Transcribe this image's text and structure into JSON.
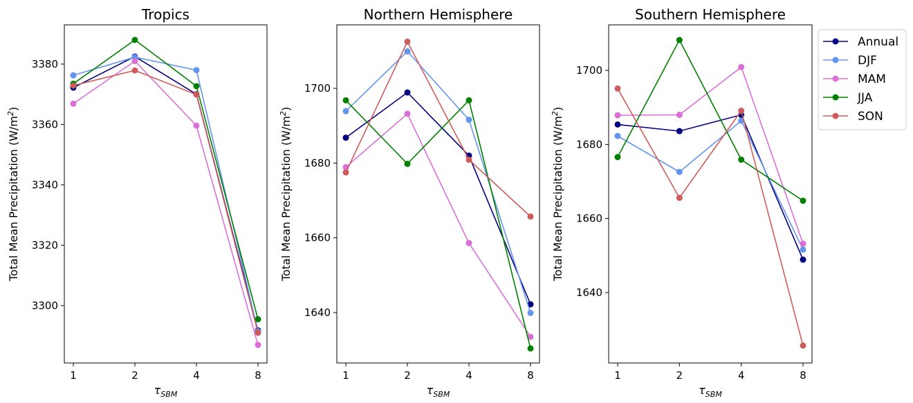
{
  "chart_data": [
    {
      "type": "line",
      "title": "Tropics",
      "xlabel": "τ",
      "xlabel_sub": "SBM",
      "ylabel": "Total Mean Precipitation (W/m",
      "ylabel_sup": "2",
      "ylabel_end": ")",
      "categories": [
        "1",
        "2",
        "4",
        "8"
      ],
      "ylim": [
        3281,
        3393
      ],
      "yticks": [
        3300,
        3320,
        3340,
        3360,
        3380
      ],
      "grid": false,
      "series": [
        {
          "name": "Annual",
          "color": "#000080",
          "values": [
            3372.2,
            3382.5,
            3370.0,
            3291.8
          ]
        },
        {
          "name": "DJF",
          "color": "#6495ED",
          "values": [
            3376.3,
            3382.3,
            3378.0,
            3291.5
          ]
        },
        {
          "name": "MAM",
          "color": "#DA70D6",
          "values": [
            3366.9,
            3381.0,
            3359.6,
            3287.0
          ]
        },
        {
          "name": "JJA",
          "color": "#008000",
          "values": [
            3373.5,
            3388.0,
            3372.7,
            3295.5
          ]
        },
        {
          "name": "SON",
          "color": "#CD5C5C",
          "values": [
            3372.9,
            3377.9,
            3369.9,
            3291.0
          ]
        }
      ]
    },
    {
      "type": "line",
      "title": "Northern Hemisphere",
      "xlabel": "τ",
      "xlabel_sub": "SBM",
      "ylabel": "Total Mean Precipitation (W/m",
      "ylabel_sup": "2",
      "ylabel_end": ")",
      "categories": [
        "1",
        "2",
        "4",
        "8"
      ],
      "ylim": [
        1626.5,
        1717.0
      ],
      "yticks": [
        1640,
        1660,
        1680,
        1700
      ],
      "grid": false,
      "series": [
        {
          "name": "Annual",
          "color": "#000080",
          "values": [
            1686.8,
            1698.9,
            1682.0,
            1642.2
          ]
        },
        {
          "name": "DJF",
          "color": "#6495ED",
          "values": [
            1693.9,
            1709.9,
            1691.6,
            1639.9
          ]
        },
        {
          "name": "MAM",
          "color": "#DA70D6",
          "values": [
            1678.9,
            1693.2,
            1658.6,
            1633.5
          ]
        },
        {
          "name": "JJA",
          "color": "#008000",
          "values": [
            1696.8,
            1679.8,
            1696.8,
            1630.4
          ]
        },
        {
          "name": "SON",
          "color": "#CD5C5C",
          "values": [
            1677.5,
            1712.5,
            1680.9,
            1665.7
          ]
        }
      ]
    },
    {
      "type": "line",
      "title": "Southern Hemisphere",
      "xlabel": "τ",
      "xlabel_sub": "SBM",
      "ylabel": "Total Mean Precipitation (W/m",
      "ylabel_sup": "2",
      "ylabel_end": ")",
      "categories": [
        "1",
        "2",
        "4",
        "8"
      ],
      "ylim": [
        1621.0,
        1712.3
      ],
      "yticks": [
        1640,
        1660,
        1680,
        1700
      ],
      "grid": false,
      "legend": "outside-right",
      "series": [
        {
          "name": "Annual",
          "color": "#000080",
          "values": [
            1685.4,
            1683.6,
            1688.0,
            1648.9
          ]
        },
        {
          "name": "DJF",
          "color": "#6495ED",
          "values": [
            1682.3,
            1672.6,
            1686.4,
            1651.6
          ]
        },
        {
          "name": "MAM",
          "color": "#DA70D6",
          "values": [
            1687.9,
            1688.0,
            1700.9,
            1653.2
          ]
        },
        {
          "name": "JJA",
          "color": "#008000",
          "values": [
            1676.6,
            1708.2,
            1675.9,
            1664.8
          ]
        },
        {
          "name": "SON",
          "color": "#CD5C5C",
          "values": [
            1695.1,
            1665.6,
            1689.1,
            1625.7
          ]
        }
      ]
    }
  ]
}
